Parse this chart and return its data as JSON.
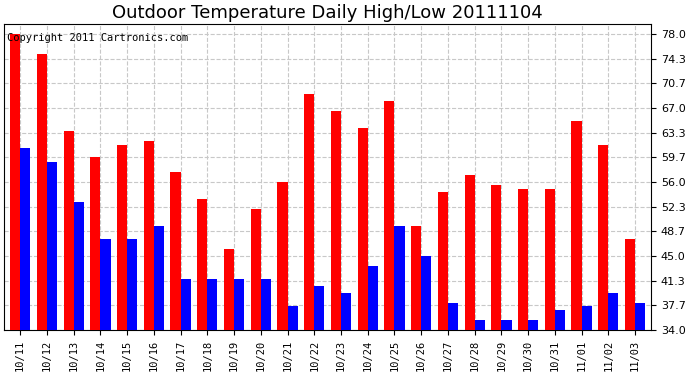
{
  "title": "Outdoor Temperature Daily High/Low 20111104",
  "copyright": "Copyright 2011 Cartronics.com",
  "dates": [
    "10/11",
    "10/12",
    "10/13",
    "10/14",
    "10/15",
    "10/16",
    "10/17",
    "10/18",
    "10/19",
    "10/20",
    "10/21",
    "10/22",
    "10/23",
    "10/24",
    "10/25",
    "10/26",
    "10/27",
    "10/28",
    "10/29",
    "10/30",
    "10/31",
    "11/01",
    "11/02",
    "11/03"
  ],
  "highs": [
    78.0,
    75.0,
    63.5,
    59.7,
    61.5,
    62.0,
    57.5,
    53.5,
    46.0,
    52.0,
    56.0,
    69.0,
    66.5,
    64.0,
    68.0,
    49.5,
    54.5,
    57.0,
    55.5,
    55.0,
    55.0,
    65.0,
    61.5,
    47.5
  ],
  "lows": [
    61.0,
    59.0,
    53.0,
    47.5,
    47.5,
    49.5,
    41.5,
    41.5,
    41.5,
    41.5,
    37.5,
    40.5,
    39.5,
    43.5,
    49.5,
    45.0,
    38.0,
    35.5,
    35.5,
    35.5,
    37.0,
    37.5,
    39.5,
    38.0
  ],
  "high_color": "#ff0000",
  "low_color": "#0000ff",
  "background_color": "#ffffff",
  "plot_bg_color": "#ffffff",
  "grid_color": "#c8c8c8",
  "yticks": [
    34.0,
    37.7,
    41.3,
    45.0,
    48.7,
    52.3,
    56.0,
    59.7,
    63.3,
    67.0,
    70.7,
    74.3,
    78.0
  ],
  "ymin": 34.0,
  "ymax": 79.5,
  "title_fontsize": 13,
  "copyright_fontsize": 7.5,
  "bar_width": 0.38
}
